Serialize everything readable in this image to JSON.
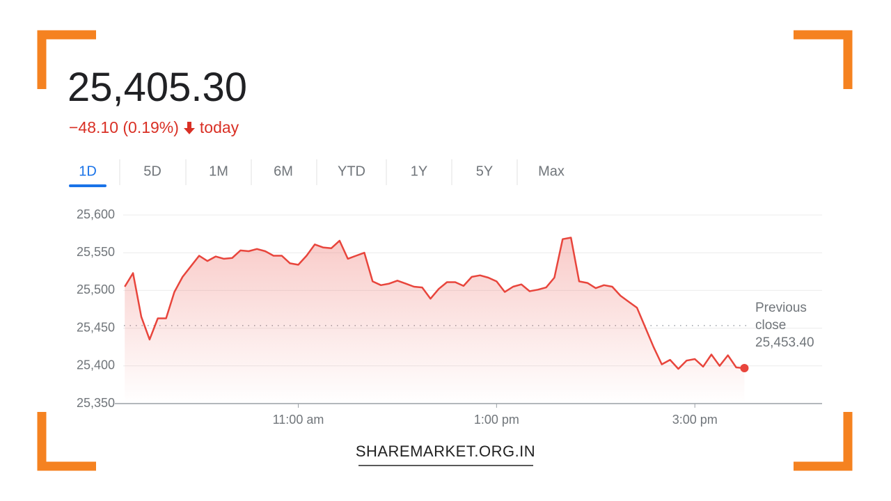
{
  "header": {
    "price": "25,405.30",
    "change": "−48.10 (0.19%)",
    "period": "today"
  },
  "tabs": [
    "1D",
    "5D",
    "1M",
    "6M",
    "YTD",
    "1Y",
    "5Y",
    "Max"
  ],
  "active_tab": 0,
  "footer": "SHAREMARKET.ORG.IN",
  "chart_data": {
    "type": "line",
    "color": "#e8453c",
    "x": [
      555,
      560,
      565,
      570,
      575,
      580,
      585,
      590,
      595,
      600,
      605,
      610,
      615,
      620,
      625,
      630,
      635,
      640,
      645,
      650,
      655,
      660,
      665,
      670,
      675,
      680,
      685,
      690,
      695,
      700,
      705,
      710,
      715,
      720,
      725,
      730,
      735,
      740,
      745,
      750,
      755,
      760,
      765,
      770,
      775,
      780,
      785,
      790,
      795,
      800,
      805,
      810,
      815,
      820,
      825,
      830,
      835,
      840,
      845,
      850,
      855,
      860,
      865,
      870,
      875,
      880,
      885,
      890,
      895,
      900,
      905,
      910,
      915,
      920,
      925,
      930
    ],
    "values": [
      25505,
      25523,
      25465,
      25435,
      25463,
      25463,
      25498,
      25518,
      25532,
      25546,
      25539,
      25545,
      25542,
      25543,
      25553,
      25552,
      25555,
      25552,
      25546,
      25546,
      25536,
      25534,
      25546,
      25561,
      25557,
      25556,
      25566,
      25542,
      25546,
      25550,
      25512,
      25507,
      25509,
      25513,
      25509,
      25505,
      25504,
      25489,
      25502,
      25511,
      25511,
      25506,
      25518,
      25520,
      25517,
      25512,
      25498,
      25505,
      25508,
      25499,
      25501,
      25504,
      25517,
      25568,
      25570,
      25512,
      25510,
      25503,
      25507,
      25505,
      25493,
      25485,
      25477,
      25451,
      25425,
      25402,
      25408,
      25396,
      25407,
      25409,
      25399,
      25415,
      25400,
      25414,
      25398,
      25397
    ],
    "xlim": [
      549,
      977
    ],
    "xticks": [
      {
        "value": 660,
        "label": "11:00 am"
      },
      {
        "value": 780,
        "label": "1:00 pm"
      },
      {
        "value": 900,
        "label": "3:00 pm"
      }
    ],
    "ylim": [
      25350,
      25600
    ],
    "yticks": [
      {
        "value": 25350,
        "label": "25,350"
      },
      {
        "value": 25400,
        "label": "25,400"
      },
      {
        "value": 25450,
        "label": "25,450"
      },
      {
        "value": 25500,
        "label": "25,500"
      },
      {
        "value": 25550,
        "label": "25,550"
      },
      {
        "value": 25600,
        "label": "25,600"
      }
    ],
    "grid": true,
    "reference": {
      "label": "Previous close",
      "value": 25453.4,
      "value_label": "25,453.40"
    }
  }
}
